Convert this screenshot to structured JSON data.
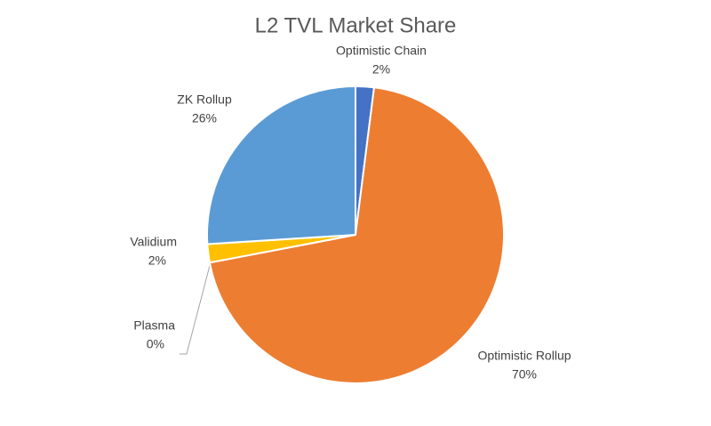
{
  "chart_data": {
    "type": "pie",
    "title": "L2 TVL Market Share",
    "categories": [
      "Optimistic Chain",
      "Optimistic Rollup",
      "Plasma",
      "Validium",
      "ZK Rollup"
    ],
    "values": [
      2,
      70,
      0,
      2,
      26
    ],
    "value_labels": [
      "2%",
      "70%",
      "0%",
      "2%",
      "26%"
    ],
    "colors": [
      "#4472c4",
      "#ed7d31",
      "#a5a5a5",
      "#ffc000",
      "#5b9bd5"
    ]
  }
}
